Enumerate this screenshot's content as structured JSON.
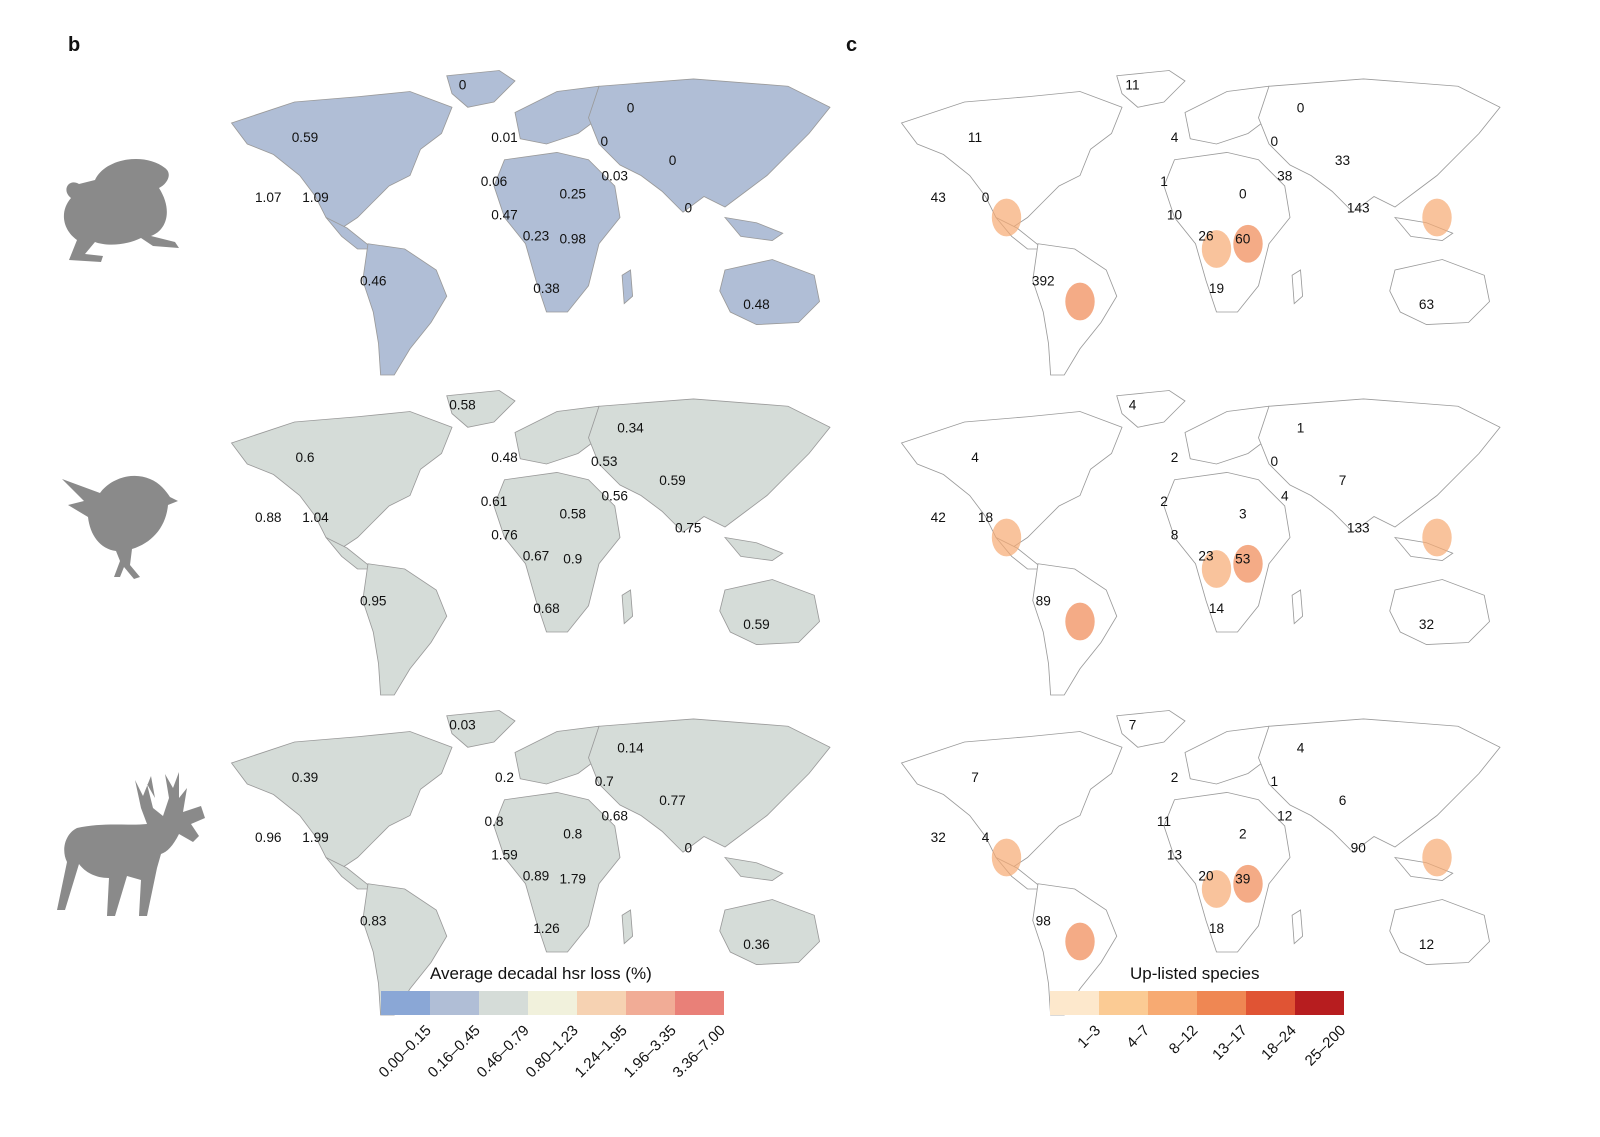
{
  "panels": {
    "b": {
      "letter": "b",
      "legend_title": "Average decadal hsr loss (%)",
      "legend_bins": [
        {
          "label": "0.00–0.15",
          "color": "#8aa7d6"
        },
        {
          "label": "0.16–0.45",
          "color": "#b0bed6"
        },
        {
          "label": "0.46–0.79",
          "color": "#d5dcd8"
        },
        {
          "label": "0.80–1.23",
          "color": "#f1f1dc"
        },
        {
          "label": "1.24–1.95",
          "color": "#f6d2b2"
        },
        {
          "label": "1.96–3.35",
          "color": "#f1ac96"
        },
        {
          "label": "3.36–7.00",
          "color": "#e98078"
        }
      ],
      "rows": [
        {
          "taxon": "amphibians",
          "base_color": "#b0bed6",
          "values": [
            "0",
            "0.59",
            "1.07",
            "1.09",
            "0.46",
            "0",
            "0.01",
            "0",
            "0",
            "0.06",
            "0.03",
            "0.25",
            "0",
            "0.47",
            "0.23",
            "0.98",
            "0.38",
            "0.48"
          ]
        },
        {
          "taxon": "birds",
          "base_color": "#d5dcd8",
          "values": [
            "0.58",
            "0.6",
            "0.88",
            "1.04",
            "0.95",
            "0.34",
            "0.48",
            "0.53",
            "0.59",
            "0.61",
            "0.56",
            "0.58",
            "0.75",
            "0.76",
            "0.67",
            "0.9",
            "0.68",
            "0.59"
          ]
        },
        {
          "taxon": "mammals",
          "base_color": "#d5dcd8",
          "values": [
            "0.03",
            "0.39",
            "0.96",
            "1.99",
            "0.83",
            "0.14",
            "0.2",
            "0.7",
            "0.77",
            "0.8",
            "0.68",
            "0.8",
            "0",
            "1.59",
            "0.89",
            "1.79",
            "1.26",
            "0.36"
          ]
        }
      ]
    },
    "c": {
      "letter": "c",
      "legend_title": "Up-listed species",
      "legend_bins": [
        {
          "label": "1–3",
          "color": "#fde8cc"
        },
        {
          "label": "4–7",
          "color": "#fbcb94"
        },
        {
          "label": "8–12",
          "color": "#f7aa72"
        },
        {
          "label": "13–17",
          "color": "#ef8753"
        },
        {
          "label": "18–24",
          "color": "#e05434"
        },
        {
          "label": "25–200",
          "color": "#b71d1f"
        }
      ],
      "rows": [
        {
          "taxon": "amphibians",
          "values": [
            "11",
            "11",
            "43",
            "0",
            "392",
            "0",
            "4",
            "0",
            "33",
            "1",
            "38",
            "0",
            "143",
            "10",
            "26",
            "60",
            "19",
            "63"
          ]
        },
        {
          "taxon": "birds",
          "values": [
            "4",
            "4",
            "42",
            "18",
            "89",
            "1",
            "2",
            "0",
            "7",
            "2",
            "4",
            "3",
            "133",
            "8",
            "23",
            "53",
            "14",
            "32"
          ]
        },
        {
          "taxon": "mammals",
          "values": [
            "7",
            "7",
            "32",
            "4",
            "98",
            "4",
            "2",
            "1",
            "6",
            "11",
            "12",
            "2",
            "90",
            "13",
            "20",
            "39",
            "18",
            "12"
          ]
        }
      ]
    }
  },
  "icons": [
    "frog-icon",
    "bird-icon",
    "reindeer-icon"
  ]
}
